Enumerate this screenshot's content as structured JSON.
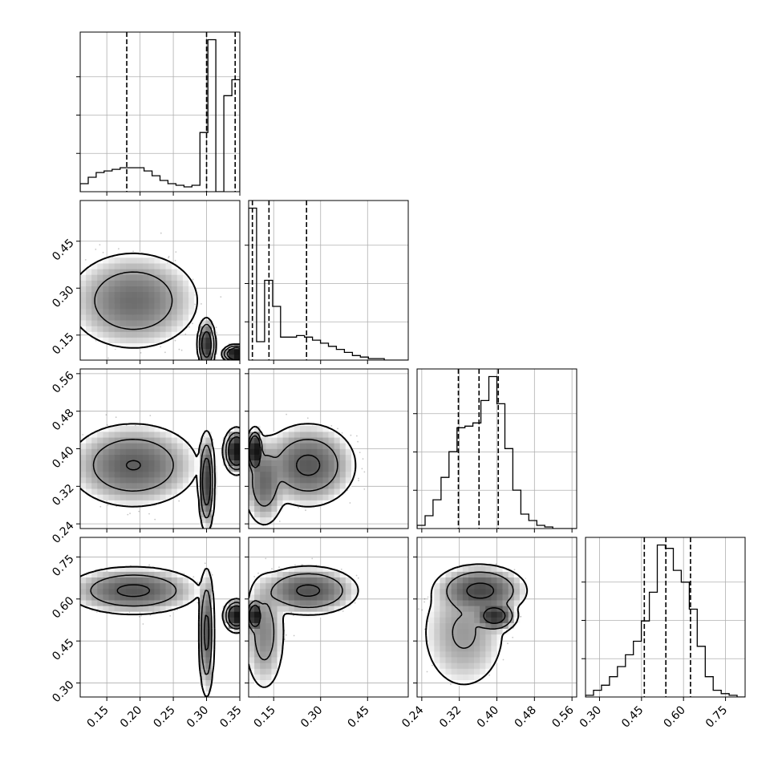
{
  "chart_data": {
    "type": "corner",
    "grid": true,
    "quantile_line_style": "dashed",
    "parameters": [
      {
        "range": [
          0.11,
          0.35
        ],
        "ticks": [
          0.15,
          0.2,
          0.25,
          0.3,
          0.35
        ],
        "tick_labels": [
          "0.15",
          "0.20",
          "0.25",
          "0.30",
          "0.35"
        ],
        "quantiles": [
          0.18,
          0.3,
          0.343
        ],
        "histogram": {
          "edges": [
            0.11,
            0.122,
            0.134,
            0.146,
            0.158,
            0.17,
            0.182,
            0.194,
            0.206,
            0.218,
            0.23,
            0.242,
            0.254,
            0.266,
            0.278,
            0.29,
            0.302,
            0.314,
            0.326,
            0.338,
            0.35
          ],
          "counts": [
            0.05,
            0.09,
            0.12,
            0.13,
            0.14,
            0.15,
            0.15,
            0.15,
            0.13,
            0.1,
            0.07,
            0.05,
            0.04,
            0.03,
            0.04,
            0.37,
            0.95,
            0.0,
            0.6,
            0.7
          ]
        }
      },
      {
        "range": [
          0.07,
          0.58
        ],
        "ticks": [
          0.15,
          0.3,
          0.45
        ],
        "tick_labels": [
          "0.15",
          "0.30",
          "0.45"
        ],
        "quantiles": [
          0.082,
          0.135,
          0.255
        ],
        "histogram": {
          "edges": [
            0.07,
            0.0955,
            0.121,
            0.1465,
            0.172,
            0.1975,
            0.223,
            0.2485,
            0.274,
            0.2995,
            0.325,
            0.3505,
            0.376,
            0.4015,
            0.427,
            0.4525,
            0.478,
            0.5035,
            0.529,
            0.5545,
            0.58
          ],
          "counts": [
            0.99,
            0.12,
            0.52,
            0.35,
            0.15,
            0.15,
            0.16,
            0.15,
            0.13,
            0.11,
            0.09,
            0.07,
            0.05,
            0.03,
            0.02,
            0.01,
            0.01,
            0.0,
            0.0,
            0.0
          ]
        }
      },
      {
        "range": [
          0.23,
          0.57
        ],
        "ticks": [
          0.24,
          0.32,
          0.4,
          0.48,
          0.56
        ],
        "tick_labels": [
          "0.24",
          "0.32",
          "0.40",
          "0.48",
          "0.56"
        ],
        "quantiles": [
          0.318,
          0.362,
          0.403
        ],
        "histogram": {
          "edges": [
            0.23,
            0.247,
            0.264,
            0.281,
            0.298,
            0.315,
            0.332,
            0.349,
            0.366,
            0.383,
            0.4,
            0.417,
            0.434,
            0.451,
            0.468,
            0.485,
            0.502,
            0.519,
            0.536,
            0.553,
            0.57
          ],
          "counts": [
            0.02,
            0.08,
            0.18,
            0.32,
            0.48,
            0.63,
            0.64,
            0.66,
            0.8,
            0.95,
            0.78,
            0.5,
            0.24,
            0.09,
            0.05,
            0.02,
            0.01,
            0.0,
            0.0,
            0.0
          ]
        }
      },
      {
        "range": [
          0.25,
          0.82
        ],
        "ticks": [
          0.3,
          0.45,
          0.6,
          0.75
        ],
        "tick_labels": [
          "0.30",
          "0.45",
          "0.60",
          "0.75"
        ],
        "quantiles": [
          0.46,
          0.537,
          0.625
        ],
        "histogram": {
          "edges": [
            0.25,
            0.2785,
            0.307,
            0.3355,
            0.364,
            0.3925,
            0.421,
            0.4495,
            0.478,
            0.5065,
            0.535,
            0.5635,
            0.592,
            0.6205,
            0.649,
            0.6775,
            0.706,
            0.7345,
            0.763,
            0.7915,
            0.82
          ],
          "counts": [
            0.01,
            0.04,
            0.07,
            0.12,
            0.18,
            0.25,
            0.33,
            0.45,
            0.62,
            0.9,
            0.88,
            0.75,
            0.68,
            0.52,
            0.3,
            0.12,
            0.04,
            0.02,
            0.01,
            0.0
          ]
        }
      }
    ],
    "clusters": [
      {
        "mean": [
          0.19,
          0.26,
          0.365,
          0.63
        ],
        "sd": [
          0.035,
          0.055,
          0.032,
          0.03
        ],
        "weight": 0.52
      },
      {
        "mean": [
          0.3,
          0.12,
          0.33,
          0.48
        ],
        "sd": [
          0.004,
          0.025,
          0.035,
          0.08
        ],
        "weight": 0.18
      },
      {
        "mean": [
          0.345,
          0.09,
          0.395,
          0.54
        ],
        "sd": [
          0.006,
          0.008,
          0.015,
          0.018
        ],
        "weight": 0.3
      }
    ]
  }
}
